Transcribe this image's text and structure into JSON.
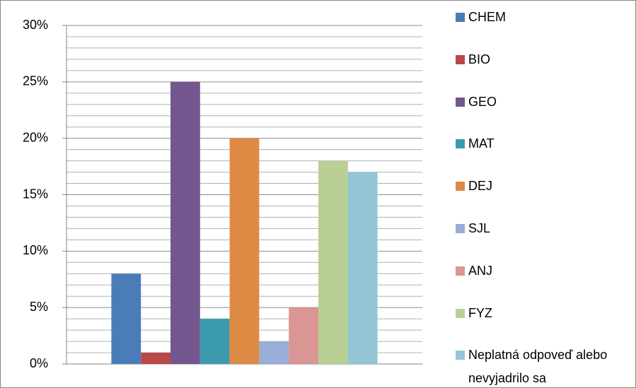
{
  "chart_data": {
    "type": "bar",
    "categories": [
      null
    ],
    "series": [
      {
        "name": "CHEM",
        "color": "#4a7db8",
        "values": [
          8
        ]
      },
      {
        "name": "BIO",
        "color": "#b94a48",
        "values": [
          1
        ]
      },
      {
        "name": "GEO",
        "color": "#73578e",
        "values": [
          25
        ]
      },
      {
        "name": "MAT",
        "color": "#3c9aae",
        "values": [
          4
        ]
      },
      {
        "name": "DEJ",
        "color": "#dd8a44",
        "values": [
          20
        ]
      },
      {
        "name": "SJL",
        "color": "#98aed8",
        "values": [
          2
        ]
      },
      {
        "name": "ANJ",
        "color": "#d99694",
        "values": [
          5
        ]
      },
      {
        "name": "FYZ",
        "color": "#b9cf95",
        "values": [
          18
        ]
      },
      {
        "name": "Neplatná odpoveď alebo nevyjadrilo sa",
        "color": "#93c5d6",
        "values": [
          17
        ]
      }
    ],
    "ylim": [
      0,
      30
    ],
    "yticks": [
      {
        "value": 0,
        "label": "0%"
      },
      {
        "value": 5,
        "label": "5%"
      },
      {
        "value": 10,
        "label": "10%"
      },
      {
        "value": 15,
        "label": "15%"
      },
      {
        "value": 20,
        "label": "20%"
      },
      {
        "value": 25,
        "label": "25%"
      },
      {
        "value": 30,
        "label": "30%"
      }
    ],
    "yminorticks": [
      1,
      2,
      3,
      4,
      6,
      7,
      8,
      9,
      11,
      12,
      13,
      14,
      16,
      17,
      18,
      19,
      21,
      22,
      23,
      24,
      26,
      27,
      28,
      29
    ],
    "grid": true,
    "legend": "right"
  }
}
